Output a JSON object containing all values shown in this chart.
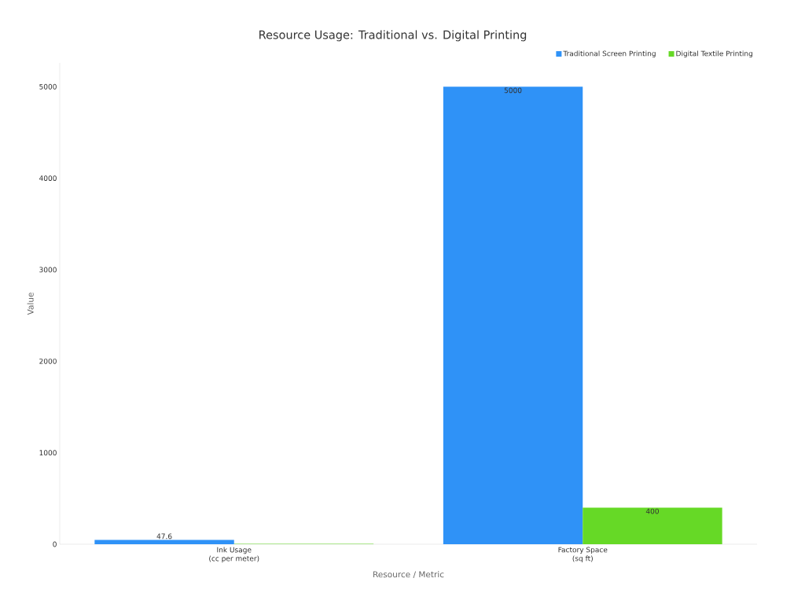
{
  "chart_data": {
    "type": "bar",
    "title": "Resource Usage: Traditional vs. Digital Printing",
    "xlabel": "Resource / Metric",
    "ylabel": "Value",
    "categories": [
      "Ink Usage\n(cc per meter)",
      "Factory Space\n(sq ft)"
    ],
    "series": [
      {
        "name": "Traditional Screen Printing",
        "color": "#2f92f7",
        "values": [
          47.6,
          5000
        ],
        "value_labels": [
          "47.6",
          "5000"
        ]
      },
      {
        "name": "Digital Textile Printing",
        "color": "#66d926",
        "values": [
          5,
          400
        ],
        "value_labels": [
          null,
          "400"
        ]
      }
    ],
    "ylim": [
      0,
      5260
    ],
    "yticks": [
      0,
      1000,
      2000,
      3000,
      4000,
      5000
    ],
    "grid": false,
    "legend": "top right"
  }
}
